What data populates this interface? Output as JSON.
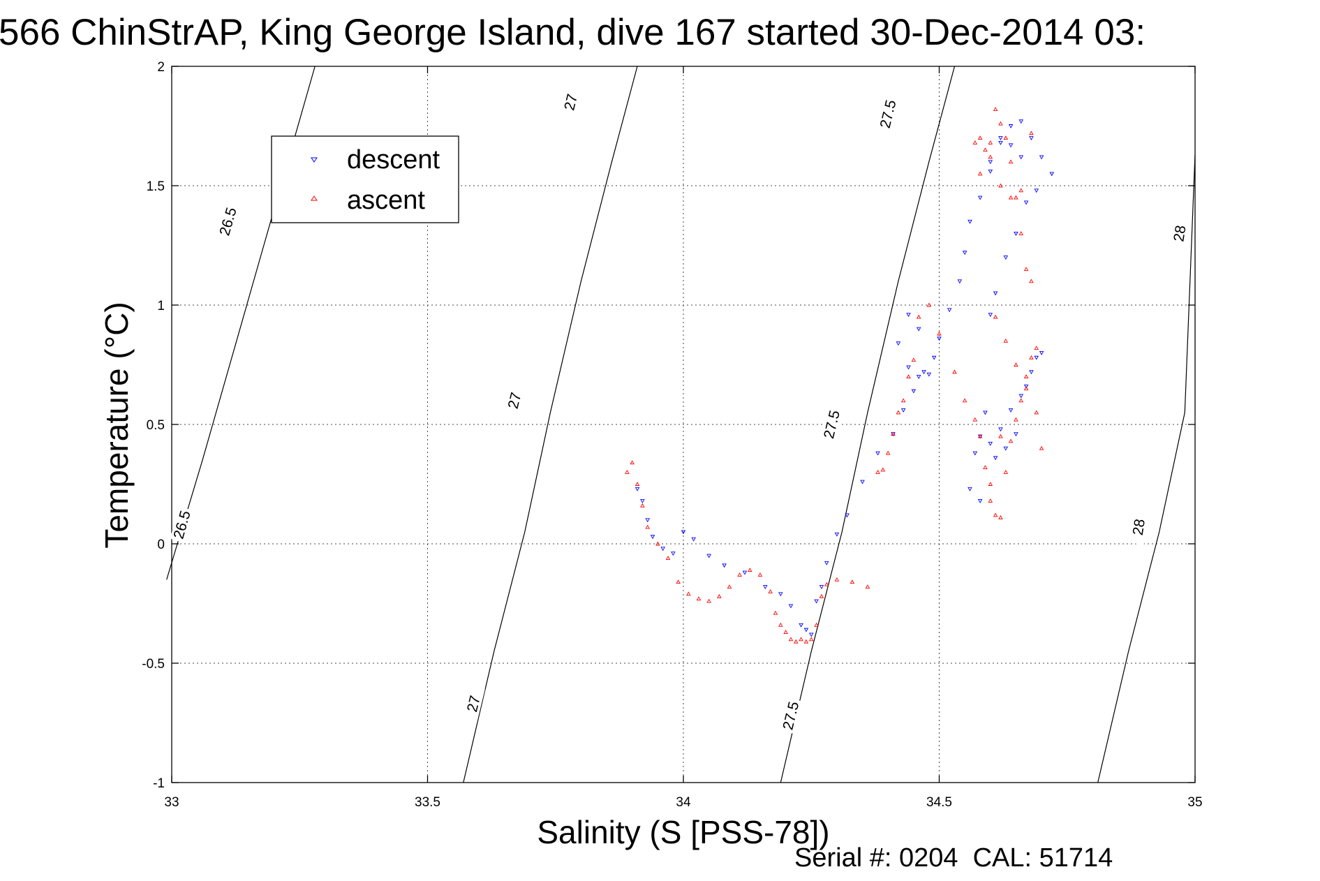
{
  "chart_data": {
    "type": "scatter",
    "title": "566 ChinStrAP, King George Island, dive 167 started 30-Dec-2014 03:",
    "xlabel": "Salinity (S [PSS-78])",
    "ylabel": "Temperature (°C)",
    "xlim": [
      33,
      35
    ],
    "ylim": [
      -1,
      2
    ],
    "x_ticks": [
      "33",
      "33.5",
      "34",
      "34.5",
      "35"
    ],
    "y_ticks": [
      "-1",
      "-0.5",
      "0",
      "0.5",
      "1",
      "1.5",
      "2"
    ],
    "grid": true,
    "legend_position": "top-left",
    "footer": "Serial #: 0204  CAL: 51714",
    "colors": {
      "descent": "#0000ff",
      "ascent": "#ff0000",
      "contour": "#000000"
    },
    "contours": [
      {
        "label": "26.5",
        "points": [
          [
            32.99,
            -0.15
          ],
          [
            33.06,
            0.35
          ],
          [
            33.12,
            0.8
          ],
          [
            33.18,
            1.25
          ],
          [
            33.24,
            1.7
          ],
          [
            33.28,
            2.0
          ]
        ],
        "label_positions": [
          [
            33.02,
            0.08
          ],
          [
            33.11,
            1.35
          ]
        ]
      },
      {
        "label": "27",
        "points": [
          [
            33.57,
            -1.0
          ],
          [
            33.63,
            -0.45
          ],
          [
            33.69,
            0.05
          ],
          [
            33.74,
            0.55
          ],
          [
            33.8,
            1.1
          ],
          [
            33.86,
            1.6
          ],
          [
            33.91,
            2.0
          ]
        ],
        "label_positions": [
          [
            33.59,
            -0.67
          ],
          [
            33.67,
            0.6
          ],
          [
            33.78,
            1.85
          ]
        ]
      },
      {
        "label": "27.5",
        "points": [
          [
            34.19,
            -1.0
          ],
          [
            34.25,
            -0.45
          ],
          [
            34.31,
            0.05
          ],
          [
            34.36,
            0.55
          ],
          [
            34.42,
            1.1
          ],
          [
            34.48,
            1.6
          ],
          [
            34.53,
            2.0
          ]
        ],
        "label_positions": [
          [
            34.21,
            -0.72
          ],
          [
            34.29,
            0.5
          ],
          [
            34.4,
            1.8
          ]
        ]
      },
      {
        "label": "28",
        "points": [
          [
            34.81,
            -1.0
          ],
          [
            34.87,
            -0.45
          ],
          [
            34.93,
            0.05
          ],
          [
            34.98,
            0.55
          ],
          [
            35.0,
            1.63
          ]
        ],
        "label_positions": [
          [
            34.89,
            0.07
          ],
          [
            34.97,
            1.3
          ]
        ]
      }
    ],
    "series": [
      {
        "name": "descent",
        "marker": "triangle-down",
        "x": [
          33.91,
          33.92,
          33.93,
          33.94,
          33.96,
          33.98,
          34.0,
          34.02,
          34.05,
          34.08,
          34.12,
          34.16,
          34.19,
          34.21,
          34.23,
          34.24,
          34.25,
          34.26,
          34.27,
          34.28,
          34.3,
          34.32,
          34.35,
          34.38,
          34.41,
          34.43,
          34.45,
          34.47,
          34.49,
          34.46,
          34.44,
          34.42,
          34.44,
          34.46,
          34.48,
          34.5,
          34.52,
          34.54,
          34.55,
          34.56,
          34.58,
          34.6,
          34.62,
          34.64,
          34.66,
          34.68,
          34.7,
          34.72,
          34.69,
          34.67,
          34.65,
          34.63,
          34.61,
          34.6,
          34.59,
          34.58,
          34.57,
          34.56,
          34.58,
          34.6,
          34.62,
          34.64,
          34.66,
          34.68,
          34.7,
          34.69,
          34.67,
          34.65,
          34.63,
          34.61,
          34.6,
          34.62,
          34.64,
          34.66
        ],
        "y": [
          0.23,
          0.18,
          0.1,
          0.03,
          -0.02,
          -0.04,
          0.05,
          0.02,
          -0.05,
          -0.09,
          -0.12,
          -0.18,
          -0.21,
          -0.26,
          -0.34,
          -0.36,
          -0.38,
          -0.24,
          -0.18,
          -0.08,
          0.04,
          0.12,
          0.26,
          0.38,
          0.46,
          0.56,
          0.64,
          0.72,
          0.78,
          0.9,
          0.96,
          0.84,
          0.74,
          0.7,
          0.71,
          0.86,
          0.98,
          1.1,
          1.22,
          1.35,
          1.45,
          1.56,
          1.68,
          1.75,
          1.77,
          1.7,
          1.62,
          1.55,
          1.48,
          1.43,
          1.3,
          1.2,
          1.05,
          0.96,
          0.55,
          0.45,
          0.38,
          0.23,
          0.18,
          0.42,
          0.48,
          0.56,
          0.62,
          0.72,
          0.8,
          0.78,
          0.66,
          0.46,
          0.4,
          0.36,
          1.6,
          1.7,
          1.67,
          1.62
        ]
      },
      {
        "name": "ascent",
        "marker": "triangle-up",
        "x": [
          33.89,
          33.9,
          33.91,
          33.92,
          33.93,
          33.95,
          33.97,
          33.99,
          34.01,
          34.03,
          34.05,
          34.07,
          34.09,
          34.11,
          34.13,
          34.15,
          34.17,
          34.18,
          34.19,
          34.2,
          34.21,
          34.22,
          34.23,
          34.24,
          34.25,
          34.26,
          34.27,
          34.28,
          34.3,
          34.33,
          34.36,
          34.38,
          34.39,
          34.4,
          34.41,
          34.42,
          34.43,
          34.44,
          34.45,
          34.46,
          34.48,
          34.5,
          34.53,
          34.55,
          34.57,
          34.58,
          34.59,
          34.6,
          34.61,
          34.62,
          34.63,
          34.64,
          34.65,
          34.66,
          34.67,
          34.68,
          34.69,
          34.68,
          34.67,
          34.66,
          34.65,
          34.64,
          34.63,
          34.62,
          34.61,
          34.6,
          34.59,
          34.58,
          34.57,
          34.58,
          34.6,
          34.62,
          34.64,
          34.66,
          34.68,
          34.7,
          34.69,
          34.67,
          34.65,
          34.63,
          34.61,
          34.6,
          34.62
        ],
        "y": [
          0.3,
          0.34,
          0.25,
          0.16,
          0.07,
          0.0,
          -0.06,
          -0.16,
          -0.21,
          -0.23,
          -0.24,
          -0.22,
          -0.18,
          -0.13,
          -0.11,
          -0.13,
          -0.2,
          -0.29,
          -0.34,
          -0.37,
          -0.4,
          -0.41,
          -0.4,
          -0.41,
          -0.4,
          -0.34,
          -0.22,
          -0.17,
          -0.15,
          -0.16,
          -0.18,
          0.3,
          0.31,
          0.38,
          0.46,
          0.55,
          0.6,
          0.7,
          0.77,
          0.95,
          1.0,
          0.88,
          0.72,
          0.6,
          0.52,
          0.45,
          0.32,
          0.18,
          0.12,
          0.11,
          0.3,
          0.43,
          0.52,
          0.6,
          0.7,
          0.78,
          0.82,
          1.1,
          1.15,
          1.3,
          1.45,
          1.6,
          1.7,
          1.76,
          1.82,
          1.68,
          1.65,
          1.55,
          1.68,
          1.7,
          1.62,
          1.5,
          1.45,
          1.48,
          1.72,
          0.4,
          0.55,
          0.65,
          0.75,
          0.85,
          0.95,
          0.25,
          0.45
        ]
      }
    ]
  }
}
